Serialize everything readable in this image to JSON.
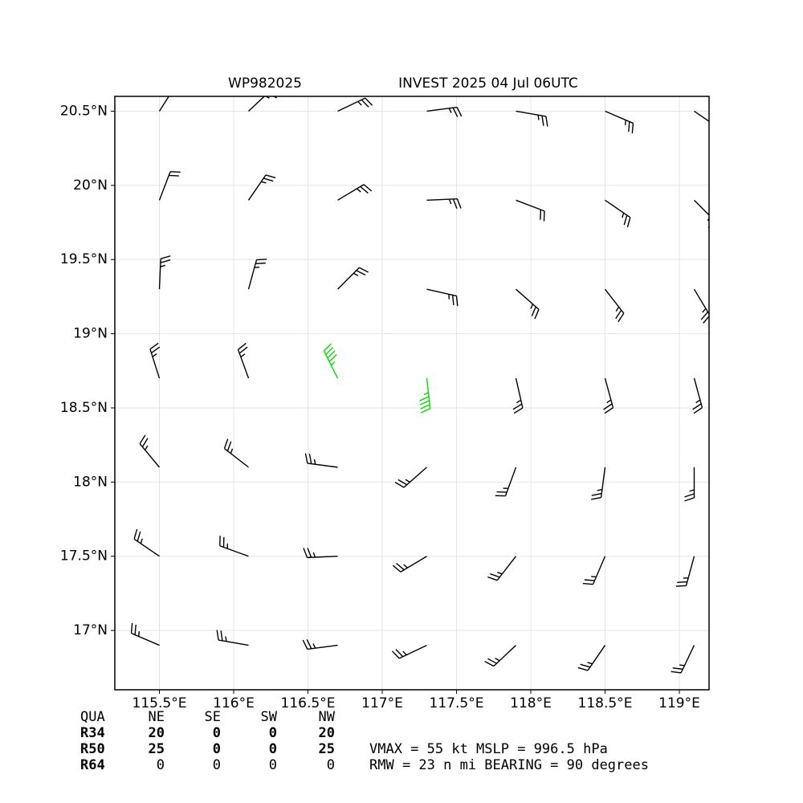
{
  "chart_data": {
    "type": "barbs",
    "title_left": "WP982025",
    "title": "INVEST 2025 04 Jul 06UTC",
    "xlim": [
      115.2,
      119.2
    ],
    "ylim": [
      16.6,
      20.6
    ],
    "xticks": [
      {
        "value": 115.5,
        "label": "115.5°E"
      },
      {
        "value": 116,
        "label": "116°E"
      },
      {
        "value": 116.5,
        "label": "116.5°E"
      },
      {
        "value": 117,
        "label": "117°E"
      },
      {
        "value": 117.5,
        "label": "117.5°E"
      },
      {
        "value": 118,
        "label": "118°E"
      },
      {
        "value": 118.5,
        "label": "118.5°E"
      },
      {
        "value": 119,
        "label": "119°E"
      }
    ],
    "yticks": [
      {
        "value": 17,
        "label": "17°N"
      },
      {
        "value": 17.5,
        "label": "17.5°N"
      },
      {
        "value": 18,
        "label": "18°N"
      },
      {
        "value": 18.5,
        "label": "18.5°N"
      },
      {
        "value": 19,
        "label": "19°N"
      },
      {
        "value": 19.5,
        "label": "19.5°N"
      },
      {
        "value": 20,
        "label": "20°N"
      },
      {
        "value": 20.5,
        "label": "20.5°N"
      }
    ],
    "grid": true,
    "x": [
      115.5,
      116.1,
      116.7,
      117.3,
      117.9,
      118.5,
      119.1
    ],
    "y": [
      16.9,
      17.5,
      18.1,
      18.7,
      19.3,
      19.9,
      20.5
    ],
    "u": [
      [
        21,
        23,
        23,
        21,
        17,
        13,
        10
      ],
      [
        19,
        22,
        23,
        20,
        14,
        9,
        6
      ],
      [
        15,
        18,
        23,
        17,
        8,
        3,
        0
      ],
      [
        7,
        8,
        20,
        -5,
        -5,
        -6,
        -6
      ],
      [
        -1,
        -6,
        -16,
        -22,
        -17,
        -14,
        -12
      ],
      [
        -8,
        -13,
        -20,
        -23,
        -21,
        -19,
        -16
      ],
      [
        -12,
        -17,
        -21,
        -23,
        -23,
        -21,
        -19
      ]
    ],
    "v": [
      [
        -9,
        -4,
        3,
        10,
        16,
        19,
        21
      ],
      [
        -13,
        -8,
        1,
        12,
        18,
        21,
        22
      ],
      [
        -18,
        -14,
        -3,
        15,
        22,
        23,
        23
      ],
      [
        -22,
        -22,
        -40,
        45,
        22,
        22,
        22
      ],
      [
        -23,
        -22,
        -16,
        5,
        15,
        18,
        20
      ],
      [
        -21,
        -19,
        -12,
        -1,
        8,
        13,
        16
      ],
      [
        -19,
        -16,
        -10,
        -3,
        4,
        9,
        13
      ]
    ],
    "color_levels": [
      {
        "min": 0,
        "color": "#000000"
      },
      {
        "min": 34,
        "color": "#00dd00"
      },
      {
        "min": 50,
        "color": "#e6b030"
      }
    ]
  },
  "table": {
    "header": [
      "QUA",
      "NE",
      "SE",
      "SW",
      "NW"
    ],
    "rows": [
      [
        "R34",
        20,
        0,
        0,
        20
      ],
      [
        "R50",
        25,
        0,
        0,
        25
      ],
      [
        "R64",
        0,
        0,
        0,
        0
      ]
    ]
  },
  "notes": [
    "VMAX =  55 kt MSLP = 996.5 hPa",
    "RMW =  23 n mi BEARING =  90 degrees"
  ]
}
